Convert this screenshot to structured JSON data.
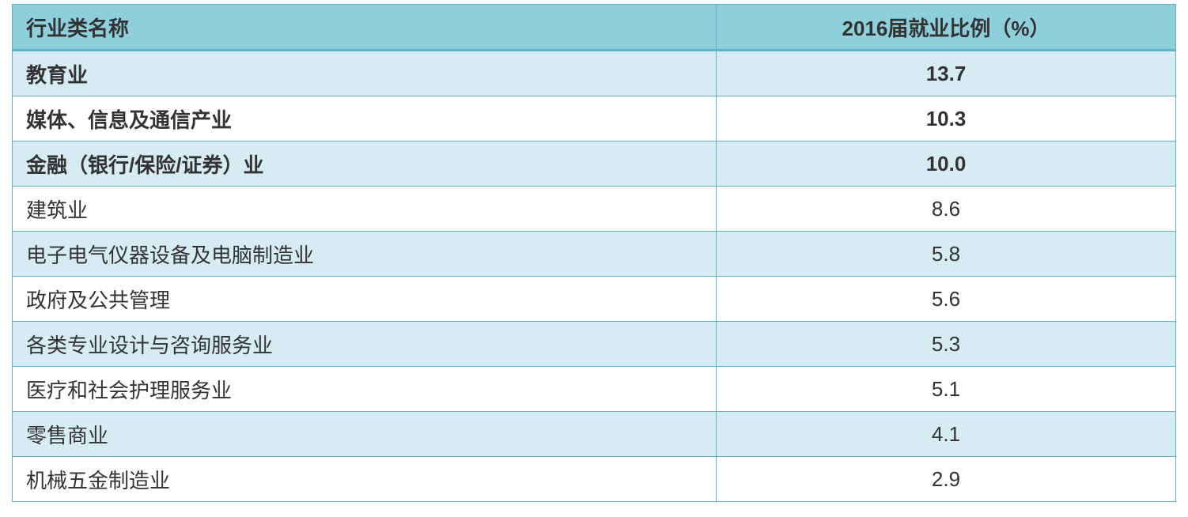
{
  "table": {
    "header": [
      "行业类名称",
      "2016届就业比例（%）"
    ],
    "rows": [
      [
        "教育业",
        "13.7"
      ],
      [
        "媒体、信息及通信产业",
        "10.3"
      ],
      [
        "金融（银行/保险/证券）业",
        "10.0"
      ],
      [
        "建筑业",
        "8.6"
      ],
      [
        "电子电气仪器设备及电脑制造业",
        "5.8"
      ],
      [
        "政府及公共管理",
        "5.6"
      ],
      [
        "各类专业设计与咨询服务业",
        "5.3"
      ],
      [
        "医疗和社会护理服务业",
        "5.1"
      ],
      [
        "零售商业",
        "4.1"
      ],
      [
        "机械五金制造业",
        "2.9"
      ]
    ]
  }
}
